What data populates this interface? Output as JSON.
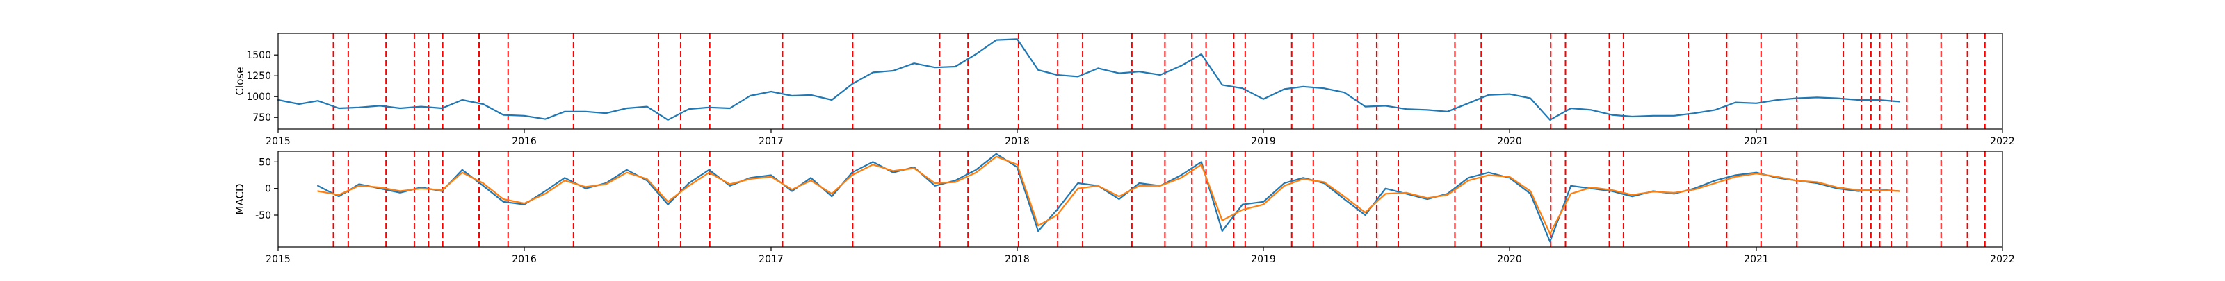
{
  "chart_data": [
    {
      "type": "line",
      "title": "",
      "xlabel": "",
      "ylabel": "Close",
      "xlim": [
        "2015-01-01",
        "2022-01-01"
      ],
      "ylim": [
        610,
        1760
      ],
      "yticks": [
        750,
        1000,
        1250,
        1500
      ],
      "xticks": [
        "2015",
        "2016",
        "2017",
        "2018",
        "2019",
        "2020",
        "2021",
        "2022"
      ],
      "grid": false,
      "series": [
        {
          "color": "#1f77b4",
          "points": [
            [
              "2015-01-01",
              960
            ],
            [
              "2015-02-01",
              910
            ],
            [
              "2015-03-01",
              950
            ],
            [
              "2015-04-01",
              860
            ],
            [
              "2015-05-01",
              870
            ],
            [
              "2015-06-01",
              890
            ],
            [
              "2015-07-01",
              860
            ],
            [
              "2015-08-01",
              880
            ],
            [
              "2015-09-01",
              860
            ],
            [
              "2015-10-01",
              960
            ],
            [
              "2015-11-01",
              910
            ],
            [
              "2015-12-01",
              780
            ],
            [
              "2016-01-01",
              770
            ],
            [
              "2016-02-01",
              730
            ],
            [
              "2016-03-01",
              820
            ],
            [
              "2016-04-01",
              820
            ],
            [
              "2016-05-01",
              800
            ],
            [
              "2016-06-01",
              860
            ],
            [
              "2016-07-01",
              880
            ],
            [
              "2016-08-01",
              720
            ],
            [
              "2016-09-01",
              850
            ],
            [
              "2016-10-01",
              870
            ],
            [
              "2016-11-01",
              860
            ],
            [
              "2016-12-01",
              1010
            ],
            [
              "2017-01-01",
              1060
            ],
            [
              "2017-02-01",
              1010
            ],
            [
              "2017-03-01",
              1020
            ],
            [
              "2017-04-01",
              960
            ],
            [
              "2017-05-01",
              1150
            ],
            [
              "2017-06-01",
              1290
            ],
            [
              "2017-07-01",
              1310
            ],
            [
              "2017-08-01",
              1400
            ],
            [
              "2017-09-01",
              1350
            ],
            [
              "2017-10-01",
              1360
            ],
            [
              "2017-11-01",
              1510
            ],
            [
              "2017-12-01",
              1680
            ],
            [
              "2018-01-01",
              1690
            ],
            [
              "2018-02-01",
              1320
            ],
            [
              "2018-03-01",
              1260
            ],
            [
              "2018-04-01",
              1240
            ],
            [
              "2018-05-01",
              1340
            ],
            [
              "2018-06-01",
              1280
            ],
            [
              "2018-07-01",
              1300
            ],
            [
              "2018-08-01",
              1260
            ],
            [
              "2018-09-01",
              1370
            ],
            [
              "2018-10-01",
              1510
            ],
            [
              "2018-11-01",
              1140
            ],
            [
              "2018-12-01",
              1100
            ],
            [
              "2019-01-01",
              970
            ],
            [
              "2019-02-01",
              1090
            ],
            [
              "2019-03-01",
              1120
            ],
            [
              "2019-04-01",
              1100
            ],
            [
              "2019-05-01",
              1050
            ],
            [
              "2019-06-01",
              880
            ],
            [
              "2019-07-01",
              890
            ],
            [
              "2019-08-01",
              850
            ],
            [
              "2019-09-01",
              840
            ],
            [
              "2019-10-01",
              820
            ],
            [
              "2019-11-01",
              920
            ],
            [
              "2019-12-01",
              1020
            ],
            [
              "2020-01-01",
              1030
            ],
            [
              "2020-02-01",
              980
            ],
            [
              "2020-03-01",
              720
            ],
            [
              "2020-04-01",
              860
            ],
            [
              "2020-05-01",
              840
            ],
            [
              "2020-06-01",
              780
            ],
            [
              "2020-07-01",
              760
            ],
            [
              "2020-08-01",
              770
            ],
            [
              "2020-09-01",
              770
            ],
            [
              "2020-10-01",
              800
            ],
            [
              "2020-11-01",
              840
            ],
            [
              "2020-12-01",
              930
            ],
            [
              "2021-01-01",
              920
            ],
            [
              "2021-02-01",
              960
            ],
            [
              "2021-03-01",
              980
            ],
            [
              "2021-04-01",
              990
            ],
            [
              "2021-05-01",
              980
            ],
            [
              "2021-06-01",
              960
            ],
            [
              "2021-07-01",
              960
            ],
            [
              "2021-08-01",
              940
            ]
          ]
        }
      ]
    },
    {
      "type": "line",
      "title": "",
      "xlabel": "",
      "ylabel": "MACD",
      "xlim": [
        "2015-01-01",
        "2022-01-01"
      ],
      "ylim": [
        -110,
        70
      ],
      "yticks": [
        -50,
        0,
        50
      ],
      "xticks": [
        "2015",
        "2016",
        "2017",
        "2018",
        "2019",
        "2020",
        "2021",
        "2022"
      ],
      "grid": false,
      "series": [
        {
          "color": "#1f77b4",
          "points": [
            [
              "2015-03-01",
              5
            ],
            [
              "2015-04-01",
              -15
            ],
            [
              "2015-05-01",
              8
            ],
            [
              "2015-06-01",
              0
            ],
            [
              "2015-07-01",
              -8
            ],
            [
              "2015-08-01",
              2
            ],
            [
              "2015-09-01",
              -5
            ],
            [
              "2015-10-01",
              35
            ],
            [
              "2015-11-01",
              5
            ],
            [
              "2015-12-01",
              -25
            ],
            [
              "2016-01-01",
              -30
            ],
            [
              "2016-02-01",
              -5
            ],
            [
              "2016-03-01",
              20
            ],
            [
              "2016-04-01",
              0
            ],
            [
              "2016-05-01",
              10
            ],
            [
              "2016-06-01",
              35
            ],
            [
              "2016-07-01",
              15
            ],
            [
              "2016-08-01",
              -30
            ],
            [
              "2016-09-01",
              10
            ],
            [
              "2016-10-01",
              35
            ],
            [
              "2016-11-01",
              5
            ],
            [
              "2016-12-01",
              20
            ],
            [
              "2017-01-01",
              25
            ],
            [
              "2017-02-01",
              -5
            ],
            [
              "2017-03-01",
              20
            ],
            [
              "2017-04-01",
              -15
            ],
            [
              "2017-05-01",
              30
            ],
            [
              "2017-06-01",
              50
            ],
            [
              "2017-07-01",
              30
            ],
            [
              "2017-08-01",
              40
            ],
            [
              "2017-09-01",
              5
            ],
            [
              "2017-10-01",
              15
            ],
            [
              "2017-11-01",
              35
            ],
            [
              "2017-12-01",
              65
            ],
            [
              "2018-01-01",
              40
            ],
            [
              "2018-02-01",
              -80
            ],
            [
              "2018-03-01",
              -40
            ],
            [
              "2018-04-01",
              10
            ],
            [
              "2018-05-01",
              5
            ],
            [
              "2018-06-01",
              -20
            ],
            [
              "2018-07-01",
              10
            ],
            [
              "2018-08-01",
              5
            ],
            [
              "2018-09-01",
              25
            ],
            [
              "2018-10-01",
              50
            ],
            [
              "2018-11-01",
              -80
            ],
            [
              "2018-12-01",
              -30
            ],
            [
              "2019-01-01",
              -25
            ],
            [
              "2019-02-01",
              10
            ],
            [
              "2019-03-01",
              20
            ],
            [
              "2019-04-01",
              10
            ],
            [
              "2019-05-01",
              -20
            ],
            [
              "2019-06-01",
              -50
            ],
            [
              "2019-07-01",
              0
            ],
            [
              "2019-08-01",
              -10
            ],
            [
              "2019-09-01",
              -20
            ],
            [
              "2019-10-01",
              -10
            ],
            [
              "2019-11-01",
              20
            ],
            [
              "2019-12-01",
              30
            ],
            [
              "2020-01-01",
              20
            ],
            [
              "2020-02-01",
              -10
            ],
            [
              "2020-03-01",
              -100
            ],
            [
              "2020-04-01",
              5
            ],
            [
              "2020-05-01",
              0
            ],
            [
              "2020-06-01",
              -5
            ],
            [
              "2020-07-01",
              -15
            ],
            [
              "2020-08-01",
              -5
            ],
            [
              "2020-09-01",
              -10
            ],
            [
              "2020-10-01",
              0
            ],
            [
              "2020-11-01",
              15
            ],
            [
              "2020-12-01",
              25
            ],
            [
              "2021-01-01",
              30
            ],
            [
              "2021-02-01",
              20
            ],
            [
              "2021-03-01",
              15
            ],
            [
              "2021-04-01",
              10
            ],
            [
              "2021-05-01",
              0
            ],
            [
              "2021-06-01",
              -5
            ],
            [
              "2021-07-01",
              -2
            ],
            [
              "2021-08-01",
              -5
            ]
          ]
        },
        {
          "color": "#ff7f0e",
          "points": [
            [
              "2015-03-01",
              -5
            ],
            [
              "2015-04-01",
              -12
            ],
            [
              "2015-05-01",
              5
            ],
            [
              "2015-06-01",
              2
            ],
            [
              "2015-07-01",
              -5
            ],
            [
              "2015-08-01",
              0
            ],
            [
              "2015-09-01",
              -3
            ],
            [
              "2015-10-01",
              30
            ],
            [
              "2015-11-01",
              10
            ],
            [
              "2015-12-01",
              -20
            ],
            [
              "2016-01-01",
              -28
            ],
            [
              "2016-02-01",
              -10
            ],
            [
              "2016-03-01",
              15
            ],
            [
              "2016-04-01",
              3
            ],
            [
              "2016-05-01",
              8
            ],
            [
              "2016-06-01",
              30
            ],
            [
              "2016-07-01",
              18
            ],
            [
              "2016-08-01",
              -25
            ],
            [
              "2016-09-01",
              5
            ],
            [
              "2016-10-01",
              30
            ],
            [
              "2016-11-01",
              8
            ],
            [
              "2016-12-01",
              18
            ],
            [
              "2017-01-01",
              22
            ],
            [
              "2017-02-01",
              -2
            ],
            [
              "2017-03-01",
              15
            ],
            [
              "2017-04-01",
              -10
            ],
            [
              "2017-05-01",
              25
            ],
            [
              "2017-06-01",
              45
            ],
            [
              "2017-07-01",
              33
            ],
            [
              "2017-08-01",
              38
            ],
            [
              "2017-09-01",
              10
            ],
            [
              "2017-10-01",
              12
            ],
            [
              "2017-11-01",
              30
            ],
            [
              "2017-12-01",
              60
            ],
            [
              "2018-01-01",
              45
            ],
            [
              "2018-02-01",
              -70
            ],
            [
              "2018-03-01",
              -50
            ],
            [
              "2018-04-01",
              0
            ],
            [
              "2018-05-01",
              5
            ],
            [
              "2018-06-01",
              -15
            ],
            [
              "2018-07-01",
              5
            ],
            [
              "2018-08-01",
              5
            ],
            [
              "2018-09-01",
              20
            ],
            [
              "2018-10-01",
              45
            ],
            [
              "2018-11-01",
              -60
            ],
            [
              "2018-12-01",
              -40
            ],
            [
              "2019-01-01",
              -30
            ],
            [
              "2019-02-01",
              5
            ],
            [
              "2019-03-01",
              18
            ],
            [
              "2019-04-01",
              12
            ],
            [
              "2019-05-01",
              -15
            ],
            [
              "2019-06-01",
              -45
            ],
            [
              "2019-07-01",
              -10
            ],
            [
              "2019-08-01",
              -8
            ],
            [
              "2019-09-01",
              -18
            ],
            [
              "2019-10-01",
              -12
            ],
            [
              "2019-11-01",
              15
            ],
            [
              "2019-12-01",
              25
            ],
            [
              "2020-01-01",
              22
            ],
            [
              "2020-02-01",
              -5
            ],
            [
              "2020-03-01",
              -85
            ],
            [
              "2020-04-01",
              -10
            ],
            [
              "2020-05-01",
              2
            ],
            [
              "2020-06-01",
              -3
            ],
            [
              "2020-07-01",
              -12
            ],
            [
              "2020-08-01",
              -6
            ],
            [
              "2020-09-01",
              -8
            ],
            [
              "2020-10-01",
              -2
            ],
            [
              "2020-11-01",
              10
            ],
            [
              "2020-12-01",
              22
            ],
            [
              "2021-01-01",
              28
            ],
            [
              "2021-02-01",
              22
            ],
            [
              "2021-03-01",
              15
            ],
            [
              "2021-04-01",
              12
            ],
            [
              "2021-05-01",
              2
            ],
            [
              "2021-06-01",
              -3
            ],
            [
              "2021-07-01",
              -3
            ],
            [
              "2021-08-01",
              -5
            ]
          ]
        }
      ]
    }
  ],
  "event_markers": {
    "color": "#ff0000",
    "style": "dashed",
    "dates": [
      "2015-03-24",
      "2015-04-15",
      "2015-06-10",
      "2015-07-22",
      "2015-08-12",
      "2015-09-02",
      "2015-10-26",
      "2015-12-08",
      "2016-03-14",
      "2016-07-18",
      "2016-08-20",
      "2016-10-02",
      "2017-01-18",
      "2017-05-02",
      "2017-09-08",
      "2017-10-20",
      "2018-01-03",
      "2018-03-02",
      "2018-04-08",
      "2018-06-20",
      "2018-08-08",
      "2018-09-17",
      "2018-10-08",
      "2018-11-18",
      "2018-12-05",
      "2019-02-12",
      "2019-03-16",
      "2019-05-20",
      "2019-06-18",
      "2019-07-20",
      "2019-10-12",
      "2019-11-20",
      "2020-03-02",
      "2020-03-24",
      "2020-05-28",
      "2020-06-18",
      "2020-09-22",
      "2020-11-18",
      "2021-01-08",
      "2021-03-02",
      "2021-05-10",
      "2021-06-06",
      "2021-06-20",
      "2021-07-03",
      "2021-07-20",
      "2021-08-12",
      "2021-10-02",
      "2021-11-10",
      "2021-12-06"
    ]
  }
}
